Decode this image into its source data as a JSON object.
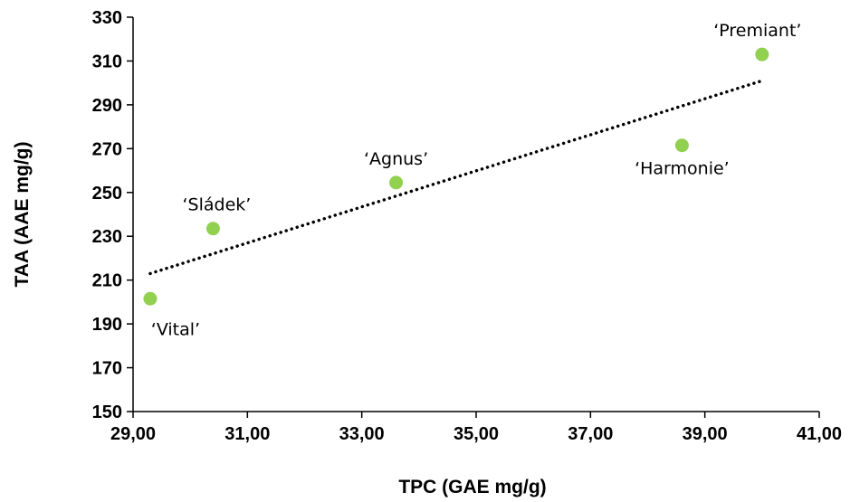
{
  "chart_data": {
    "type": "scatter",
    "title": "",
    "xlabel": "TPC (GAE mg/g)",
    "ylabel": "TAA (AAE mg/g)",
    "xlim": [
      29,
      41
    ],
    "ylim": [
      150,
      330
    ],
    "x_ticks": [
      29,
      31,
      33,
      35,
      37,
      39,
      41
    ],
    "x_tick_labels": [
      "29,00",
      "31,00",
      "33,00",
      "35,00",
      "37,00",
      "39,00",
      "41,00"
    ],
    "y_ticks": [
      150,
      170,
      190,
      210,
      230,
      250,
      270,
      290,
      310,
      330
    ],
    "y_tick_labels": [
      "150",
      "170",
      "190",
      "210",
      "230",
      "250",
      "270",
      "290",
      "310",
      "330"
    ],
    "grid": false,
    "legend": "none",
    "marker_color": "#92d050",
    "trendline": {
      "type": "linear",
      "style": "dotted",
      "color": "#000000",
      "x": [
        29.3,
        40.0
      ],
      "y": [
        213,
        301
      ]
    },
    "points": [
      {
        "label": "‘Vital’",
        "x": 29.3,
        "y": 201.5
      },
      {
        "label": "‘Sládek’",
        "x": 30.4,
        "y": 233.5
      },
      {
        "label": "‘Agnus’",
        "x": 33.6,
        "y": 254.5
      },
      {
        "label": "‘Harmonie’",
        "x": 38.6,
        "y": 271.5
      },
      {
        "label": "‘Premiant’",
        "x": 40.0,
        "y": 313
      }
    ]
  }
}
